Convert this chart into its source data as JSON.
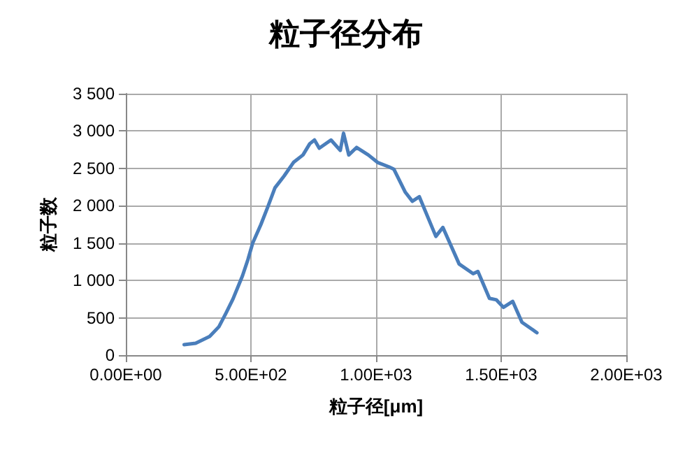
{
  "chart_data": {
    "type": "line",
    "title": "粒子径分布",
    "xlabel": "粒子径[μm]",
    "ylabel": "粒子数",
    "x": [
      233,
      279,
      335,
      372,
      400,
      428,
      466,
      488,
      507,
      540,
      568,
      596,
      633,
      670,
      708,
      735,
      754,
      773,
      820,
      857,
      870,
      891,
      922,
      969,
      1006,
      1052,
      1071,
      1117,
      1145,
      1173,
      1239,
      1267,
      1332,
      1388,
      1407,
      1453,
      1481,
      1509,
      1546,
      1583,
      1643
    ],
    "series": [
      {
        "color": "#4a7ebb",
        "values": [
          140,
          160,
          250,
          380,
          560,
          750,
          1060,
          1280,
          1500,
          1750,
          1990,
          2240,
          2400,
          2580,
          2680,
          2830,
          2880,
          2770,
          2880,
          2740,
          2970,
          2680,
          2780,
          2680,
          2580,
          2520,
          2490,
          2180,
          2060,
          2120,
          1590,
          1710,
          1220,
          1090,
          1120,
          760,
          740,
          640,
          720,
          440,
          300
        ]
      }
    ],
    "xlim": [
      0,
      2000
    ],
    "xticks": [
      {
        "value": 0,
        "label": "0.00E+00"
      },
      {
        "value": 500,
        "label": "5.00E+02"
      },
      {
        "value": 1000,
        "label": "1.00E+03"
      },
      {
        "value": 1500,
        "label": "1.50E+03"
      },
      {
        "value": 2000,
        "label": "2.00E+03"
      }
    ],
    "ylim": [
      0,
      3500
    ],
    "yticks": [
      0,
      500,
      1000,
      1500,
      2000,
      2500,
      3000,
      3500
    ],
    "grid": true,
    "marker": "none",
    "line_style": "solid"
  }
}
